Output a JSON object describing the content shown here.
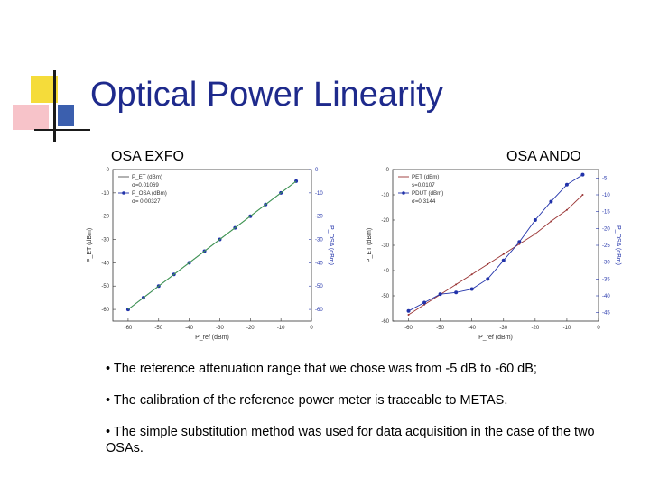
{
  "slide": {
    "title": "Optical Power Linearity",
    "accent_color": "#1e2a8c"
  },
  "panels": [
    {
      "label": "OSA EXFO"
    },
    {
      "label": "OSA ANDO"
    }
  ],
  "bullets": [
    "• The reference attenuation range that we chose was from -5 dB to -60 dB;",
    "• The calibration of the reference power meter is traceable to METAS.",
    "• The simple substitution method was used for data acquisition in the case of the two OSAs."
  ],
  "chart_data": [
    {
      "type": "scatter",
      "xlabel": "P_ref (dBm)",
      "ylabel_left": "P_ET (dBm)",
      "ylabel_right": "P_OSA (dBm)",
      "xlim": [
        -65,
        0
      ],
      "ylim": [
        -65,
        0
      ],
      "x_ticks": [
        "-60",
        "-50",
        "-40",
        "-30",
        "-20",
        "-10",
        "0"
      ],
      "y_ticks_left": [
        "0",
        "-10",
        "-20",
        "-30",
        "-40",
        "-50",
        "-60"
      ],
      "y_ticks_right": [
        "0",
        "-10",
        "-20",
        "-30",
        "-40",
        "-50",
        "-60"
      ],
      "legend": {
        "position": "top-left",
        "entries": [
          "P_ET (dBm)",
          "σ=0.01069",
          "P_OSA (dBm)",
          "σ= 0.00327"
        ]
      },
      "series": [
        {
          "name": "P_ET (dBm)",
          "color": "#555555",
          "marker": "none",
          "x": [
            -60,
            -5
          ],
          "y": [
            -60,
            -5
          ]
        },
        {
          "name": "P_OSA (dBm)",
          "color": "#2233aa",
          "marker": "circle",
          "x": [
            -60,
            -55,
            -50,
            -45,
            -40,
            -35,
            -30,
            -25,
            -20,
            -15,
            -10,
            -5
          ],
          "y": [
            -60,
            -55,
            -50,
            -45,
            -40,
            -35,
            -30,
            -25,
            -20,
            -15,
            -10,
            -5
          ]
        },
        {
          "name": "fit",
          "color": "#44aa44",
          "marker": "none",
          "x": [
            -60,
            -5
          ],
          "y": [
            -60,
            -5
          ]
        }
      ]
    },
    {
      "type": "scatter",
      "xlabel": "P_ref (dBm)",
      "ylabel_left": "P_ET (dBm)",
      "ylabel_right": "P_OSA (dBm)",
      "xlim": [
        -65,
        0
      ],
      "ylim_left": [
        -60,
        0
      ],
      "ylim_right": [
        -47.5,
        -2.5
      ],
      "x_ticks": [
        "-60",
        "-50",
        "-40",
        "-30",
        "-20",
        "-10",
        "0"
      ],
      "y_ticks_left": [
        "0",
        "-10",
        "-20",
        "-30",
        "-40",
        "-50",
        "-60"
      ],
      "y_ticks_right": [
        "-5",
        "-10",
        "-15",
        "-20",
        "-25",
        "-30",
        "-35",
        "-40",
        "-45"
      ],
      "legend": {
        "position": "top-left",
        "entries": [
          "PET (dBm)",
          "s=0.0107",
          "PDUT (dBm)",
          "σ=0.3144"
        ]
      },
      "series": [
        {
          "name": "PET (dBm)",
          "color": "#993333",
          "marker": "tick",
          "x": [
            -60,
            -55,
            -50,
            -45,
            -40,
            -35,
            -30,
            -25,
            -20,
            -15,
            -10,
            -5
          ],
          "y": [
            -57.5,
            -53.5,
            -49.5,
            -45.5,
            -41.5,
            -37.5,
            -33.5,
            -29.5,
            -25.5,
            -20.5,
            -16,
            -10
          ]
        },
        {
          "name": "PDUT (dBm)",
          "color": "#2233aa",
          "marker": "circle",
          "x": [
            -60,
            -55,
            -50,
            -45,
            -40,
            -35,
            -30,
            -25,
            -20,
            -15,
            -10,
            -5
          ],
          "y": [
            -44.5,
            -42,
            -39.5,
            -39,
            -38,
            -35,
            -29.5,
            -24,
            -17.5,
            -12,
            -7,
            -4
          ]
        }
      ]
    }
  ]
}
